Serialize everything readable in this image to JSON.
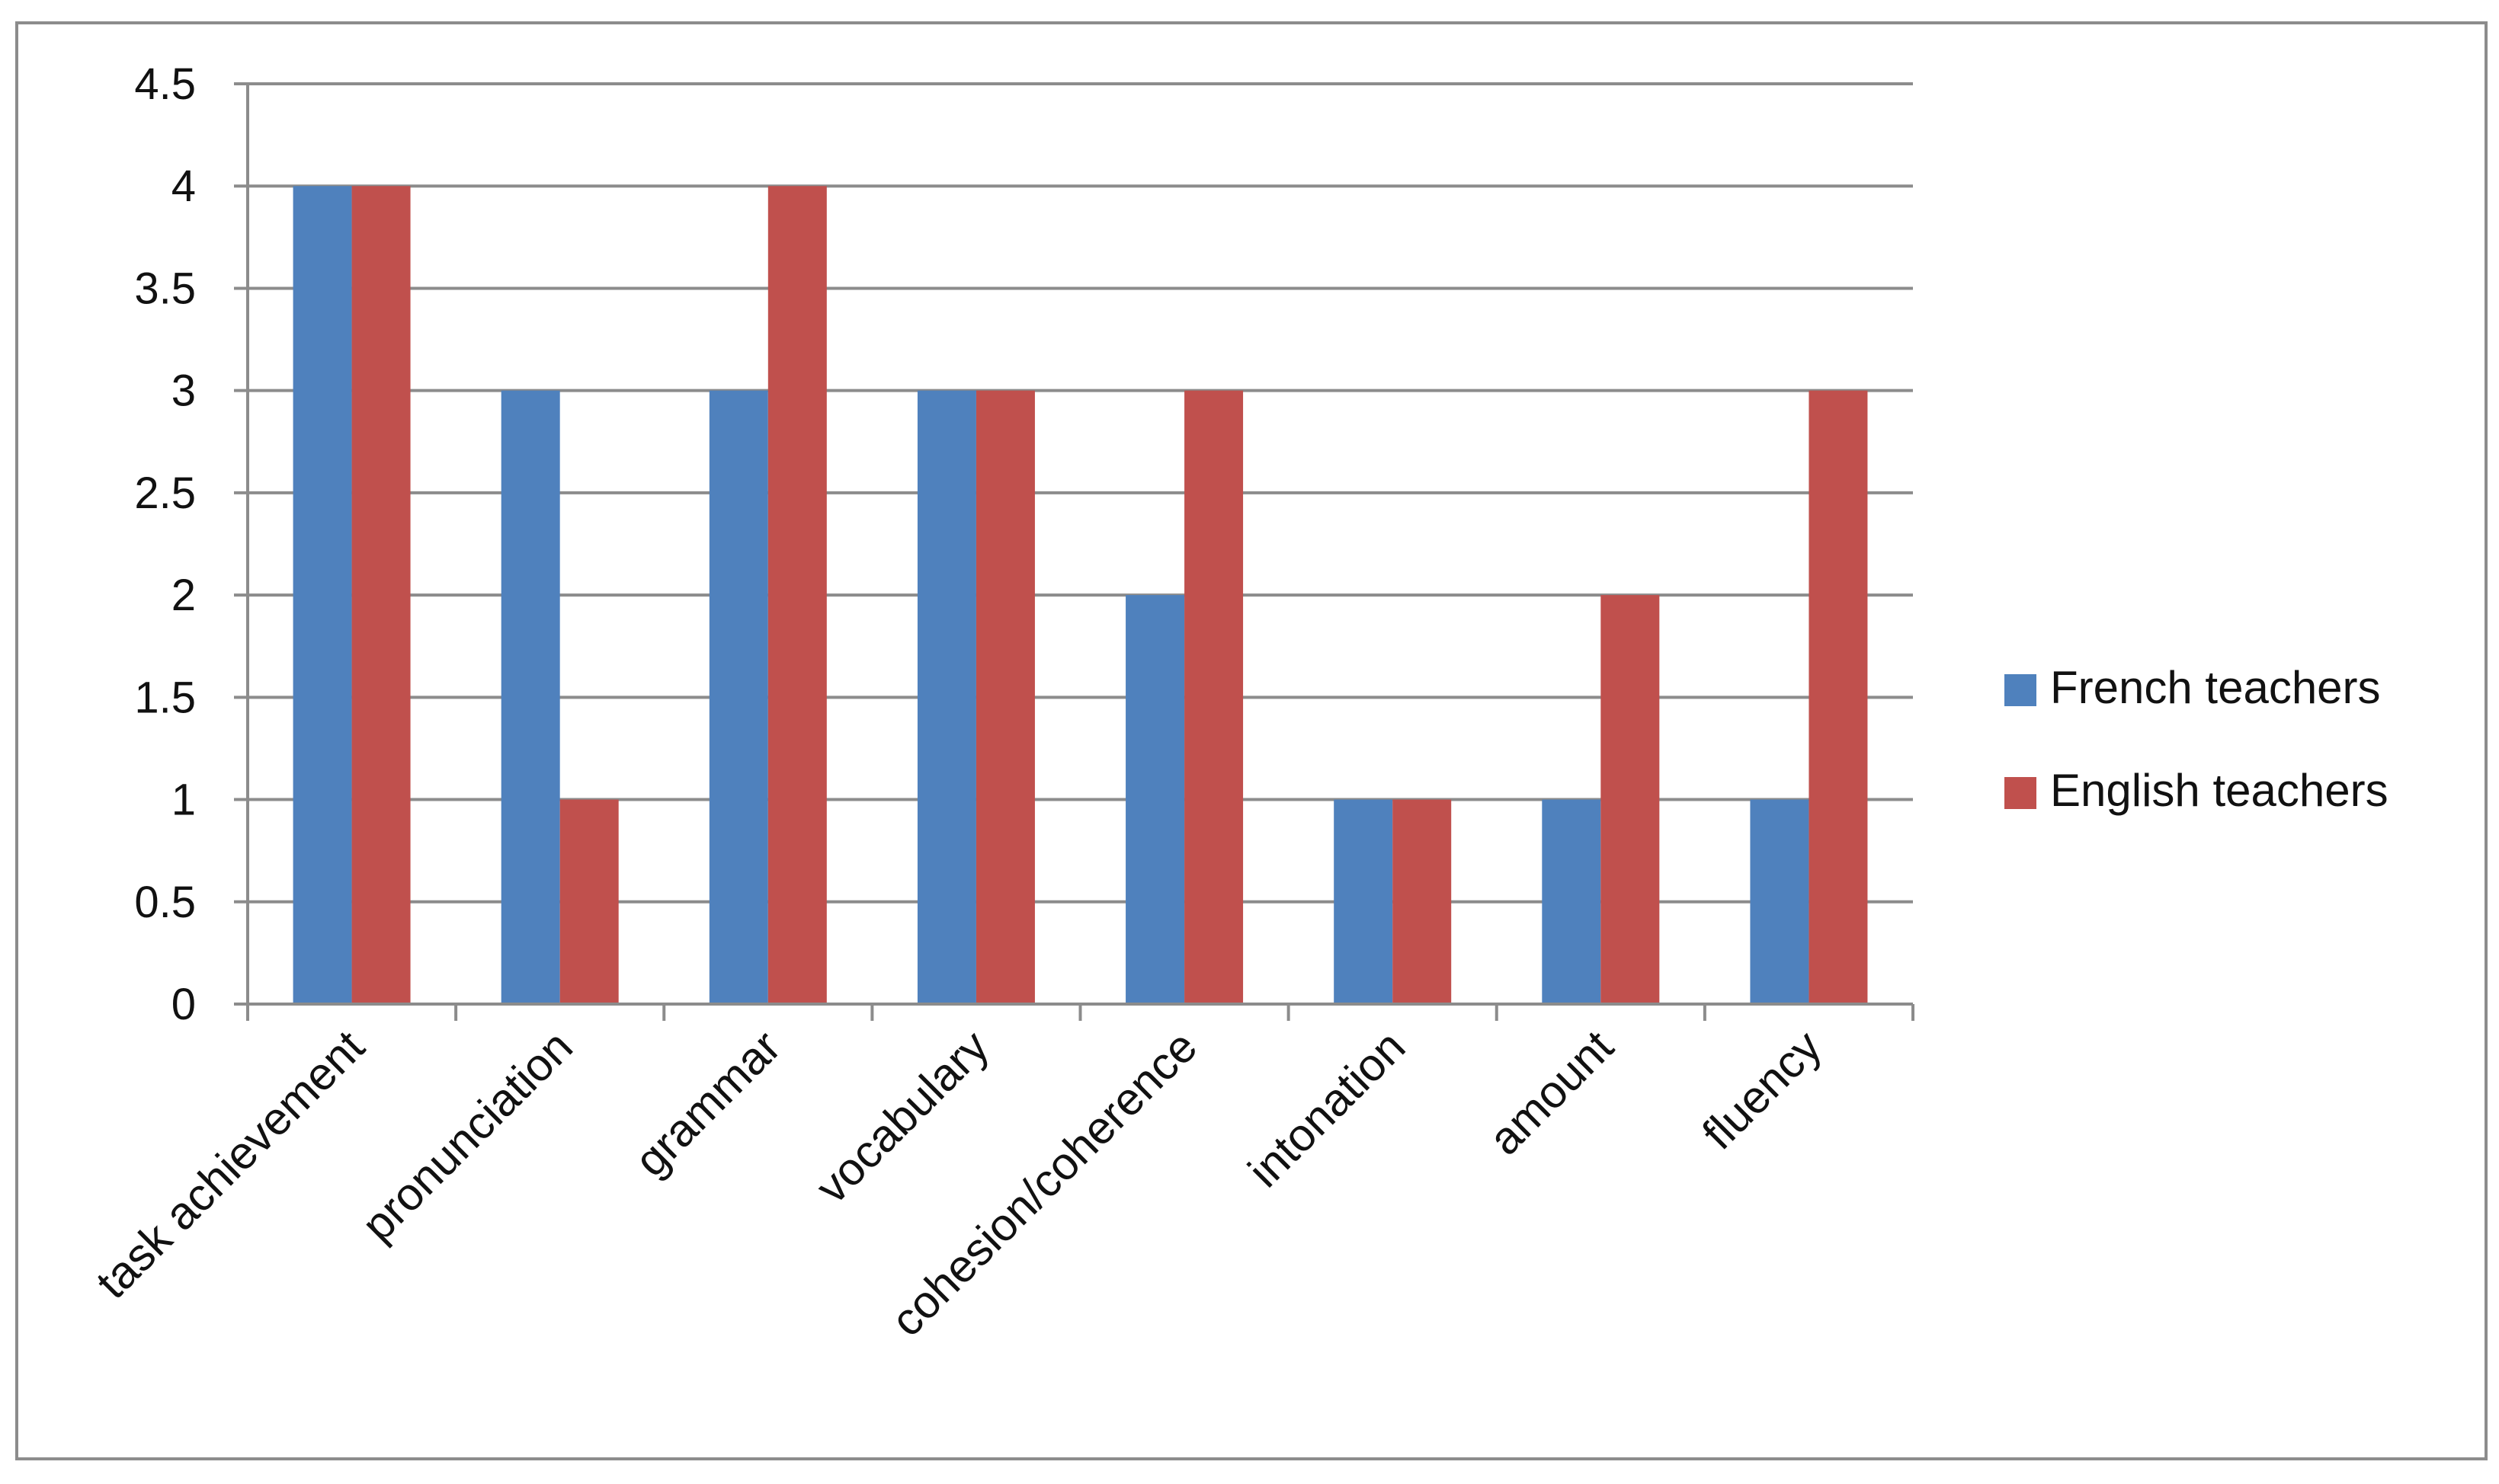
{
  "chart_data": {
    "type": "bar",
    "title": "",
    "xlabel": "",
    "ylabel": "",
    "categories": [
      "task achievement",
      "pronunciation",
      "grammar",
      "vocabulary",
      "cohesion/coherence",
      "intonation",
      "amount",
      "fluency"
    ],
    "series": [
      {
        "name": "French teachers",
        "color": "#4f81bd",
        "values": [
          4,
          3,
          3,
          3,
          2,
          1,
          1,
          1
        ]
      },
      {
        "name": "English teachers",
        "color": "#c0504d",
        "values": [
          4,
          1,
          4,
          3,
          3,
          1,
          2,
          3
        ]
      }
    ],
    "ylim": [
      0,
      4.5
    ],
    "yticks": [
      "0",
      "0.5",
      "1",
      "1.5",
      "2",
      "2.5",
      "3",
      "3.5",
      "4",
      "4.5"
    ],
    "grid": true,
    "legend_position": "right"
  }
}
